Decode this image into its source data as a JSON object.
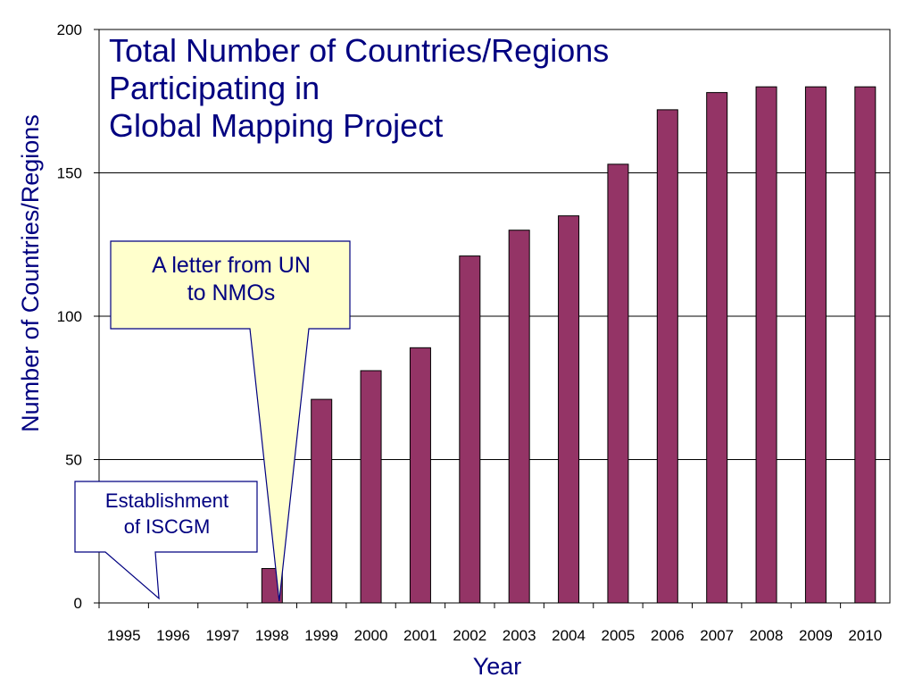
{
  "chart_data": {
    "type": "bar",
    "title_lines": [
      "Total Number of Countries/Regions",
      "Participating in",
      "Global Mapping Project"
    ],
    "xlabel": "Year",
    "ylabel": "Number of Countries/Regions",
    "categories": [
      "1995",
      "1996",
      "1997",
      "1998",
      "1999",
      "2000",
      "2001",
      "2002",
      "2003",
      "2004",
      "2005",
      "2006",
      "2007",
      "2008",
      "2009",
      "2010"
    ],
    "values": [
      0,
      0,
      0,
      12,
      71,
      81,
      89,
      121,
      130,
      135,
      153,
      172,
      178,
      180,
      180,
      180
    ],
    "ylim": [
      0,
      200
    ],
    "yticks": [
      "0",
      "50",
      "100",
      "150",
      "200"
    ],
    "grid": true,
    "bar_color": "#943466",
    "annotations": [
      {
        "id": "un-letter",
        "text_lines": [
          "A letter from UN",
          "to NMOs"
        ],
        "points_to": "1998",
        "fill": "#ffffcc"
      },
      {
        "id": "iscgm",
        "text_lines": [
          "Establishment",
          "of ISCGM"
        ],
        "points_to": "1996",
        "fill": "#ffffff"
      }
    ]
  },
  "colors": {
    "text": "#000080",
    "bar": "#943466",
    "grid": "#000000",
    "callout_fill_yellow": "#ffffcc"
  }
}
